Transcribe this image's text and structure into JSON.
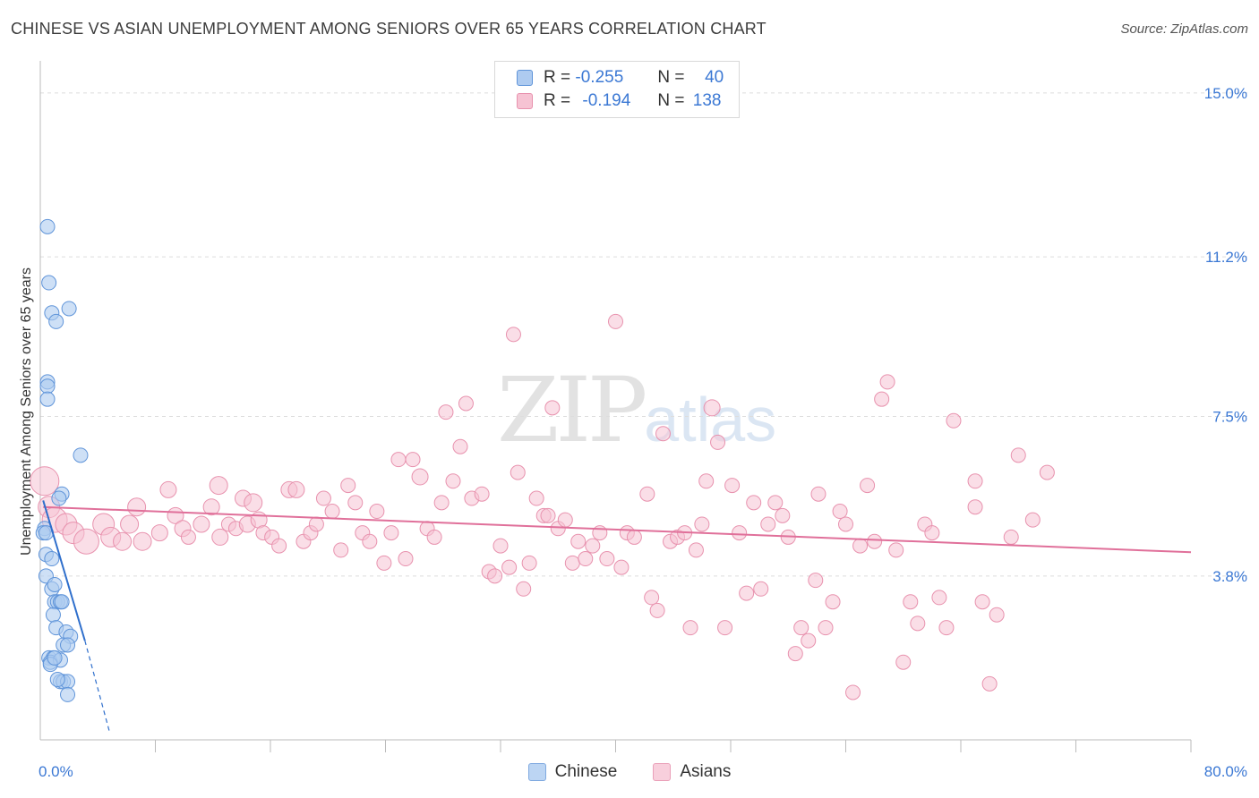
{
  "title": "CHINESE VS ASIAN UNEMPLOYMENT AMONG SENIORS OVER 65 YEARS CORRELATION CHART",
  "source": "Source: ZipAtlas.com",
  "watermark": {
    "zip": "ZIP",
    "atlas": "atlas"
  },
  "legend_top": [
    {
      "r_label": "R =",
      "r_value": "-0.255",
      "n_label": "N =",
      "n_value": "40"
    },
    {
      "r_label": "R =",
      "r_value": "-0.194",
      "n_label": "N =",
      "n_value": "138"
    }
  ],
  "legend_bottom": [
    "Chinese",
    "Asians"
  ],
  "colors": {
    "chinese_fill": "#aecbf0",
    "chinese_stroke": "#5f94d9",
    "chinese_line": "#2f6fcc",
    "asians_fill": "#f6c3d3",
    "asians_stroke": "#e892ae",
    "asians_line": "#e0709a",
    "tick_label": "#3b78d4",
    "grid": "#dddddd"
  },
  "chart_data": {
    "type": "scatter",
    "title": "CHINESE VS ASIAN UNEMPLOYMENT AMONG SENIORS OVER 65 YEARS CORRELATION CHART",
    "xlabel": "",
    "ylabel": "Unemployment Among Seniors over 65 years",
    "xlim": [
      0,
      80
    ],
    "ylim": [
      0,
      15.6
    ],
    "x_tick_labels": [
      "0.0%",
      "80.0%"
    ],
    "y_ticks": [
      3.8,
      7.5,
      11.2,
      15.0
    ],
    "y_tick_labels": [
      "3.8%",
      "7.5%",
      "11.2%",
      "15.0%"
    ],
    "grid": "horizontal dashed",
    "series": [
      {
        "name": "Chinese",
        "r": -0.255,
        "n": 40,
        "trend": {
          "x0": 0.2,
          "y0": 5.55,
          "x1": 3.1,
          "y1": 2.3,
          "dash_to_x": 4.8,
          "dash_to_y": 0.2
        },
        "points": [
          [
            0.5,
            11.9
          ],
          [
            0.6,
            10.6
          ],
          [
            0.8,
            9.9
          ],
          [
            1.1,
            9.7
          ],
          [
            2.0,
            10.0
          ],
          [
            0.5,
            8.3
          ],
          [
            0.5,
            8.2
          ],
          [
            0.5,
            7.9
          ],
          [
            2.8,
            6.6
          ],
          [
            1.5,
            5.7
          ],
          [
            1.3,
            5.6
          ],
          [
            0.3,
            4.9
          ],
          [
            0.2,
            4.8
          ],
          [
            0.4,
            4.8
          ],
          [
            0.4,
            4.3
          ],
          [
            0.8,
            4.2
          ],
          [
            0.4,
            3.8
          ],
          [
            0.8,
            3.5
          ],
          [
            1.0,
            3.6
          ],
          [
            1.0,
            3.2
          ],
          [
            1.2,
            3.2
          ],
          [
            1.4,
            3.2
          ],
          [
            1.5,
            3.2
          ],
          [
            0.9,
            2.9
          ],
          [
            1.1,
            2.6
          ],
          [
            1.8,
            2.5
          ],
          [
            2.1,
            2.4
          ],
          [
            1.6,
            2.2
          ],
          [
            1.9,
            2.2
          ],
          [
            0.6,
            1.9
          ],
          [
            0.9,
            1.9
          ],
          [
            0.7,
            1.8
          ],
          [
            1.4,
            1.85
          ],
          [
            0.7,
            1.75
          ],
          [
            1.4,
            1.35
          ],
          [
            1.6,
            1.35
          ],
          [
            1.9,
            1.35
          ],
          [
            1.9,
            1.05
          ],
          [
            1.2,
            1.4
          ],
          [
            1.0,
            1.9
          ]
        ]
      },
      {
        "name": "Asians",
        "r": -0.194,
        "n": 138,
        "trend": {
          "x0": 0.2,
          "y0": 5.4,
          "x1": 80.0,
          "y1": 4.35
        },
        "points": [
          [
            0.3,
            6.0,
            16
          ],
          [
            0.6,
            5.4,
            12
          ],
          [
            1.0,
            5.1,
            14
          ],
          [
            1.8,
            5.0,
            12
          ],
          [
            2.3,
            4.8,
            12
          ],
          [
            3.2,
            4.6,
            14
          ],
          [
            4.4,
            5.0,
            12
          ],
          [
            4.9,
            4.7,
            11
          ],
          [
            5.7,
            4.6,
            10
          ],
          [
            6.2,
            5.0,
            10
          ],
          [
            6.7,
            5.4,
            10
          ],
          [
            7.1,
            4.6,
            10
          ],
          [
            8.3,
            4.8,
            9
          ],
          [
            8.9,
            5.8,
            9
          ],
          [
            9.4,
            5.2,
            9
          ],
          [
            9.9,
            4.9,
            9
          ],
          [
            10.3,
            4.7,
            8
          ],
          [
            11.2,
            5.0,
            9
          ],
          [
            11.9,
            5.4,
            9
          ],
          [
            12.4,
            5.9,
            10
          ],
          [
            12.5,
            4.7,
            9
          ],
          [
            13.1,
            5.0,
            8
          ],
          [
            13.6,
            4.9,
            8
          ],
          [
            14.1,
            5.6,
            9
          ],
          [
            14.4,
            5.0,
            9
          ],
          [
            14.8,
            5.5,
            10
          ],
          [
            15.2,
            5.1,
            9
          ],
          [
            15.5,
            4.8,
            8
          ],
          [
            16.1,
            4.7,
            8
          ],
          [
            16.6,
            4.5,
            8
          ],
          [
            17.3,
            5.8,
            9
          ],
          [
            17.8,
            5.8,
            9
          ],
          [
            18.3,
            4.6,
            8
          ],
          [
            18.8,
            4.8,
            8
          ],
          [
            19.2,
            5.0,
            8
          ],
          [
            19.7,
            5.6,
            8
          ],
          [
            20.3,
            5.3,
            8
          ],
          [
            20.9,
            4.4,
            8
          ],
          [
            21.4,
            5.9,
            8
          ],
          [
            21.9,
            5.5,
            8
          ],
          [
            22.4,
            4.8,
            8
          ],
          [
            22.9,
            4.6,
            8
          ],
          [
            23.4,
            5.3,
            8
          ],
          [
            23.9,
            4.1,
            8
          ],
          [
            24.4,
            4.8,
            8
          ],
          [
            24.9,
            6.5,
            8
          ],
          [
            25.4,
            4.2,
            8
          ],
          [
            25.9,
            6.5,
            8
          ],
          [
            26.4,
            6.1,
            9
          ],
          [
            26.9,
            4.9,
            8
          ],
          [
            27.4,
            4.7,
            8
          ],
          [
            27.9,
            5.5,
            8
          ],
          [
            28.2,
            7.6,
            8
          ],
          [
            28.7,
            6.0,
            8
          ],
          [
            29.2,
            6.8,
            8
          ],
          [
            29.6,
            7.8,
            8
          ],
          [
            30.0,
            5.6,
            8
          ],
          [
            30.7,
            5.7,
            8
          ],
          [
            31.2,
            3.9,
            8
          ],
          [
            31.6,
            3.8,
            8
          ],
          [
            32.0,
            4.5,
            8
          ],
          [
            32.6,
            4.0,
            8
          ],
          [
            32.9,
            9.4,
            8
          ],
          [
            33.2,
            6.2,
            8
          ],
          [
            33.6,
            3.5,
            8
          ],
          [
            34.0,
            4.1,
            8
          ],
          [
            34.5,
            5.6,
            8
          ],
          [
            35.0,
            5.2,
            8
          ],
          [
            35.3,
            5.2,
            8
          ],
          [
            35.6,
            7.7,
            8
          ],
          [
            36.0,
            4.9,
            8
          ],
          [
            36.5,
            5.1,
            8
          ],
          [
            37.0,
            4.1,
            8
          ],
          [
            37.4,
            4.6,
            8
          ],
          [
            37.9,
            4.2,
            8
          ],
          [
            38.4,
            4.5,
            8
          ],
          [
            38.9,
            4.8,
            8
          ],
          [
            39.4,
            4.2,
            8
          ],
          [
            40.0,
            9.7,
            8
          ],
          [
            40.4,
            4.0,
            8
          ],
          [
            40.8,
            4.8,
            8
          ],
          [
            41.3,
            4.7,
            8
          ],
          [
            42.2,
            5.7,
            8
          ],
          [
            42.5,
            3.3,
            8
          ],
          [
            42.9,
            3.0,
            8
          ],
          [
            43.3,
            7.1,
            8
          ],
          [
            43.8,
            4.6,
            8
          ],
          [
            44.3,
            4.7,
            8
          ],
          [
            44.8,
            4.8,
            8
          ],
          [
            45.2,
            2.6,
            8
          ],
          [
            45.6,
            4.4,
            8
          ],
          [
            46.0,
            5.0,
            8
          ],
          [
            46.3,
            6.0,
            8
          ],
          [
            46.7,
            7.7,
            9
          ],
          [
            47.1,
            6.9,
            8
          ],
          [
            47.6,
            2.6,
            8
          ],
          [
            48.1,
            5.9,
            8
          ],
          [
            48.6,
            4.8,
            8
          ],
          [
            49.1,
            3.4,
            8
          ],
          [
            49.6,
            5.5,
            8
          ],
          [
            50.1,
            3.5,
            8
          ],
          [
            50.6,
            5.0,
            8
          ],
          [
            51.1,
            5.5,
            8
          ],
          [
            51.6,
            5.2,
            8
          ],
          [
            52.0,
            4.7,
            8
          ],
          [
            52.5,
            2.0,
            8
          ],
          [
            52.9,
            2.6,
            8
          ],
          [
            53.4,
            2.3,
            8
          ],
          [
            53.9,
            3.7,
            8
          ],
          [
            54.1,
            5.7,
            8
          ],
          [
            54.6,
            2.6,
            8
          ],
          [
            55.1,
            3.2,
            8
          ],
          [
            55.6,
            5.3,
            8
          ],
          [
            56.0,
            5.0,
            8
          ],
          [
            56.5,
            1.1,
            8
          ],
          [
            57.0,
            4.5,
            8
          ],
          [
            57.5,
            5.9,
            8
          ],
          [
            58.0,
            4.6,
            8
          ],
          [
            58.5,
            7.9,
            8
          ],
          [
            58.9,
            8.3,
            8
          ],
          [
            59.5,
            4.4,
            8
          ],
          [
            60.0,
            1.8,
            8
          ],
          [
            60.5,
            3.2,
            8
          ],
          [
            61.0,
            2.7,
            8
          ],
          [
            61.5,
            5.0,
            8
          ],
          [
            62.0,
            4.8,
            8
          ],
          [
            62.5,
            3.3,
            8
          ],
          [
            63.0,
            2.6,
            8
          ],
          [
            63.5,
            7.4,
            8
          ],
          [
            65.0,
            6.0,
            8
          ],
          [
            65.0,
            5.4,
            8
          ],
          [
            65.5,
            3.2,
            8
          ],
          [
            66.0,
            1.3,
            8
          ],
          [
            66.5,
            2.9,
            8
          ],
          [
            68.0,
            6.6,
            8
          ],
          [
            70.0,
            6.2,
            8
          ],
          [
            67.5,
            4.7,
            8
          ],
          [
            69.0,
            5.1,
            8
          ]
        ]
      }
    ]
  }
}
